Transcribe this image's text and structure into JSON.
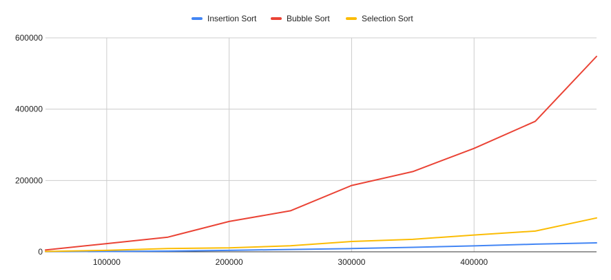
{
  "chart_data": {
    "type": "line",
    "title": "",
    "xlabel": "",
    "ylabel": "",
    "x": [
      50000,
      100000,
      150000,
      200000,
      250000,
      300000,
      350000,
      400000,
      450000,
      500000
    ],
    "xlim": [
      50000,
      500000
    ],
    "ylim": [
      0,
      600000
    ],
    "x_ticks": [
      100000,
      200000,
      300000,
      400000
    ],
    "y_ticks": [
      0,
      200000,
      400000,
      600000
    ],
    "x_tick_labels": [
      "100000",
      "200000",
      "300000",
      "400000"
    ],
    "y_tick_labels": [
      "0",
      "200000",
      "400000",
      "600000"
    ],
    "grid": true,
    "legend_position": "top",
    "series": [
      {
        "name": "Insertion Sort",
        "color": "#4285f4",
        "values": [
          500,
          1000,
          2000,
          4000,
          6500,
          9000,
          12500,
          16500,
          21500,
          25000
        ]
      },
      {
        "name": "Bubble Sort",
        "color": "#ea4335",
        "values": [
          5000,
          23000,
          41000,
          85000,
          115000,
          186000,
          225000,
          290000,
          366000,
          548000
        ]
      },
      {
        "name": "Selection Sort",
        "color": "#fbbc04",
        "values": [
          1000,
          4000,
          9000,
          11000,
          17000,
          29000,
          35000,
          47000,
          58000,
          95000
        ]
      }
    ]
  }
}
